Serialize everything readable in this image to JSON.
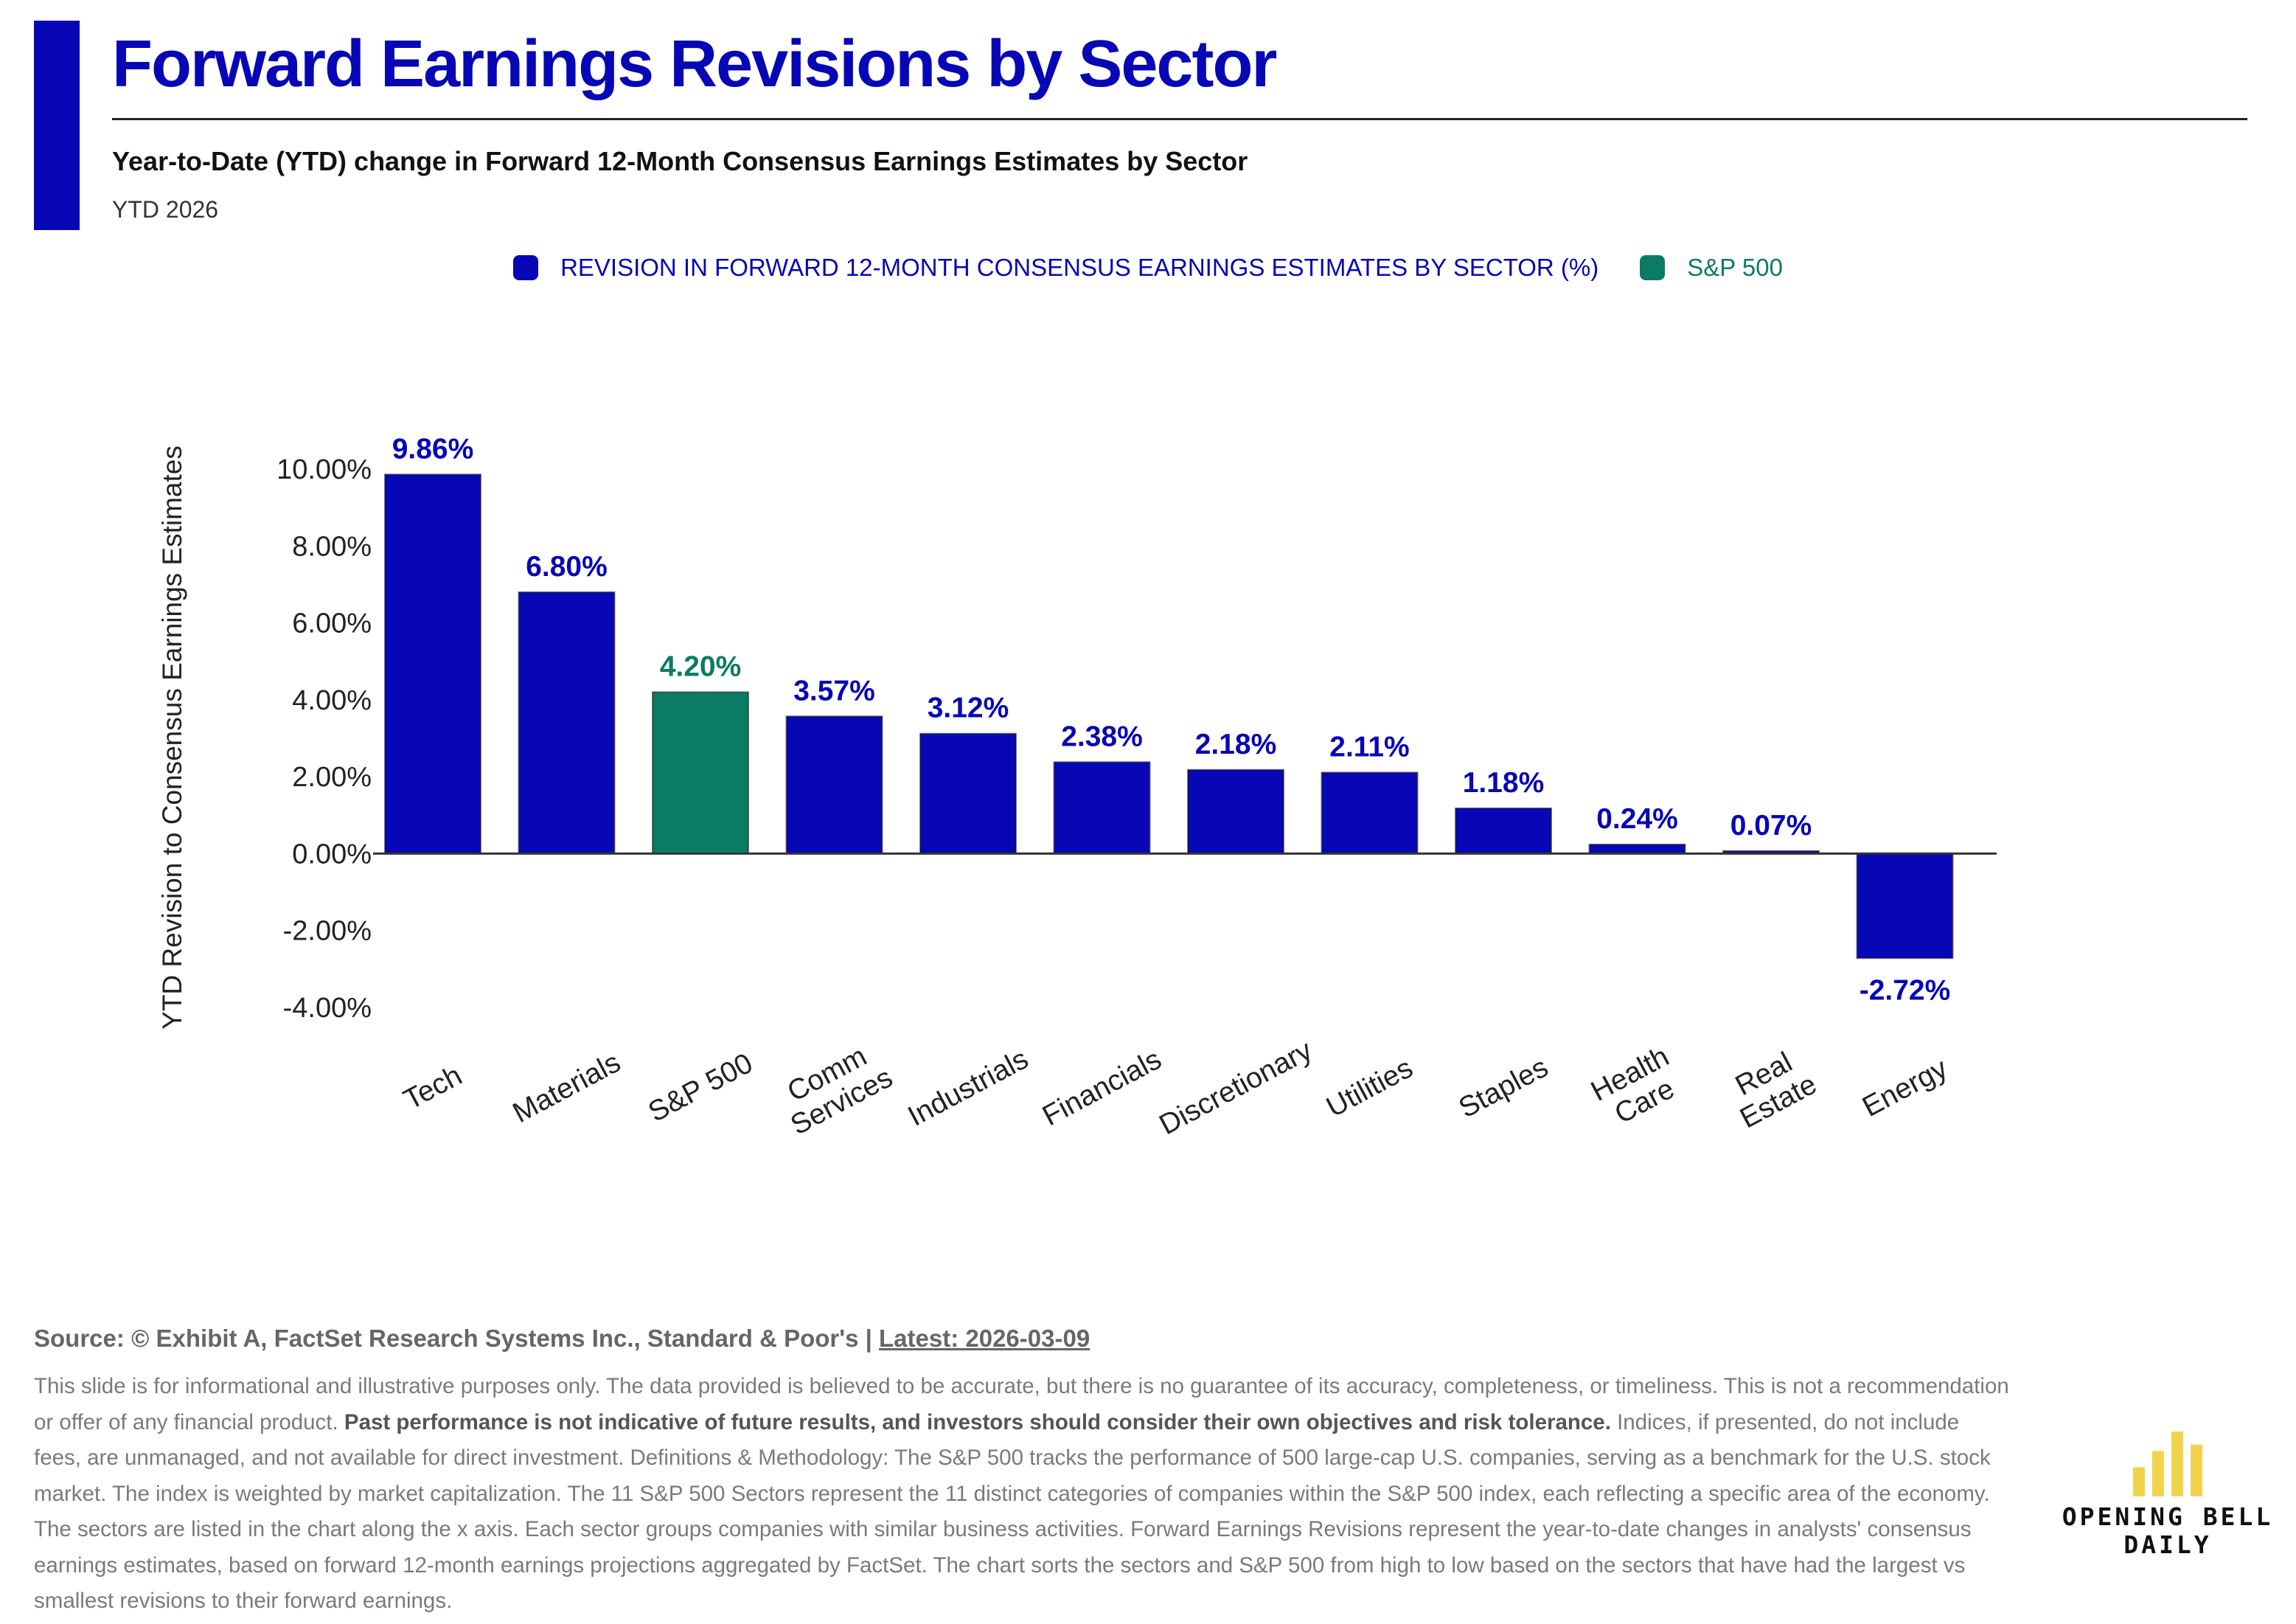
{
  "header": {
    "title": "Forward Earnings Revisions by Sector",
    "subtitle": "Year-to-Date (YTD) change in Forward 12-Month Consensus Earnings Estimates by Sector",
    "period": "YTD 2026"
  },
  "legend": {
    "items": [
      {
        "label": "REVISION IN FORWARD 12-MONTH CONSENSUS EARNINGS ESTIMATES BY SECTOR (%)",
        "color": "#0707b5"
      },
      {
        "label": "S&P 500",
        "color": "#0a7c63"
      }
    ]
  },
  "chart_data": {
    "type": "bar",
    "title": "Forward Earnings Revisions by Sector",
    "ylabel": "YTD Revision to Consensus Earnings Estimates",
    "xlabel": "",
    "ylim": [
      -4,
      10
    ],
    "yticks": [
      10,
      8,
      6,
      4,
      2,
      0,
      -2,
      -4
    ],
    "ytick_labels": [
      "10.00%",
      "8.00%",
      "6.00%",
      "4.00%",
      "2.00%",
      "0.00%",
      "-2.00%",
      "-4.00%"
    ],
    "grid": false,
    "legend_position": "top-center",
    "categories": [
      [
        "Tech"
      ],
      [
        "Materials"
      ],
      [
        "S&P 500"
      ],
      [
        "Comm",
        "Services"
      ],
      [
        "Industrials"
      ],
      [
        "Financials"
      ],
      [
        "Discretionary"
      ],
      [
        "Utilities"
      ],
      [
        "Staples"
      ],
      [
        "Health",
        "Care"
      ],
      [
        "Real",
        "Estate"
      ],
      [
        "Energy"
      ]
    ],
    "values": [
      9.86,
      6.8,
      4.2,
      3.57,
      3.12,
      2.38,
      2.18,
      2.11,
      1.18,
      0.24,
      0.07,
      -2.72
    ],
    "data_labels": [
      "9.86%",
      "6.80%",
      "4.20%",
      "3.57%",
      "3.12%",
      "2.38%",
      "2.18%",
      "2.11%",
      "1.18%",
      "0.24%",
      "0.07%",
      "-2.72%"
    ],
    "highlight_category": "S&P 500",
    "colors": {
      "sector": "#0707b5",
      "benchmark": "#0a7c63",
      "axis": "#333333",
      "tick_text": "#222222"
    }
  },
  "footer": {
    "source_prefix": "Source: © Exhibit A, FactSet Research Systems Inc., Standard & Poor's | ",
    "latest": "Latest: 2026-03-09",
    "disclaimer_part1": "This slide is for informational and illustrative purposes only. The data provided is believed to be accurate, but there is no guarantee of its accuracy, completeness, or timeliness. This is not a recommendation or offer of any financial product. ",
    "disclaimer_bold": "Past performance is not indicative of future results, and investors should consider their own objectives and risk tolerance.",
    "disclaimer_part2": " Indices, if presented, do not include fees, are unmanaged, and not available for direct investment. Definitions & Methodology: The S&P 500 tracks the performance of 500 large-cap U.S. companies, serving as a benchmark for the U.S. stock market. The index is weighted by market capitalization. The 11 S&P 500 Sectors represent the 11 distinct categories of companies within the S&P 500 index, each reflecting a specific area of the economy. The sectors are listed in the chart along the x axis. Each sector groups companies with similar business activities. Forward Earnings Revisions represent the year-to-date changes in analysts' consensus earnings estimates, based on forward 12-month earnings projections aggregated by FactSet. The chart sorts the sectors and S&P 500 from high to low based on the sectors that have had the largest vs smallest revisions to their forward earnings."
  },
  "logo": {
    "line1": "OPENING BELL",
    "line2": "DAILY",
    "bar_color": "#f2d44c",
    "bar_levels": [
      0.45,
      0.7,
      1.0,
      0.8
    ]
  }
}
